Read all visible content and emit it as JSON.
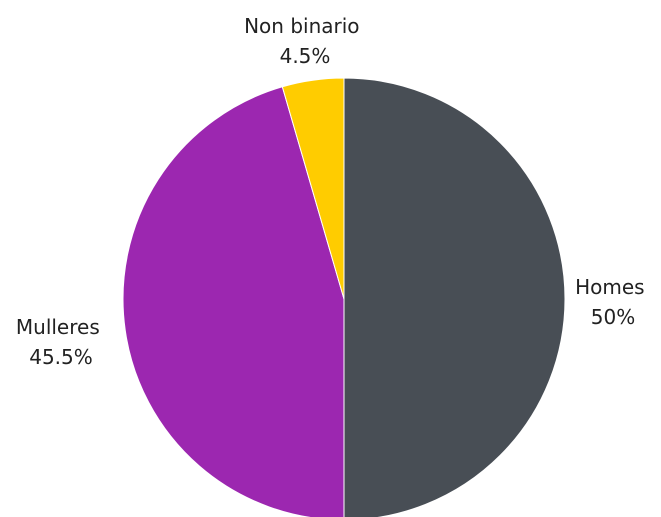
{
  "chart_data": {
    "type": "pie",
    "title": "",
    "start_angle_deg": 0,
    "direction": "clockwise",
    "slices": [
      {
        "label": "Homes",
        "value": 50,
        "value_label": "50%",
        "color": "#484e55"
      },
      {
        "label": "Mulleres",
        "value": 45.5,
        "value_label": "45.5%",
        "color": "#9c27b0"
      },
      {
        "label": "Non binario",
        "value": 4.5,
        "value_label": "4.5%",
        "color": "#ffcc00"
      }
    ]
  }
}
